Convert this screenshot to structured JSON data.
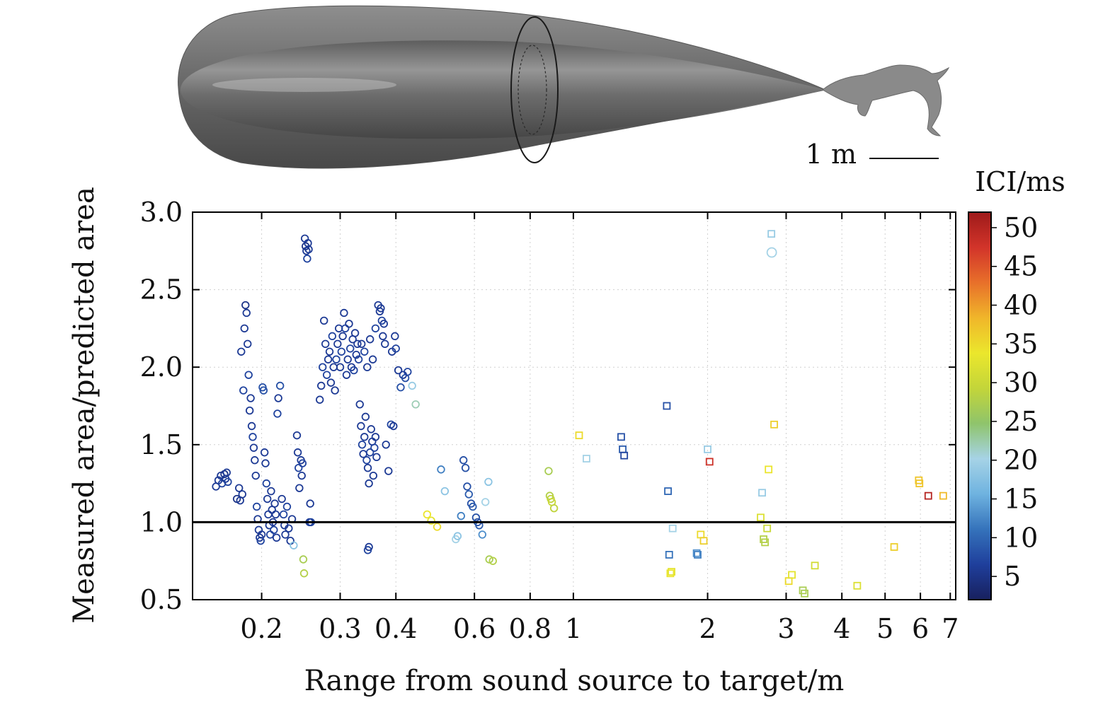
{
  "figure": {
    "scale_bar_label": "1 m",
    "colorbar_title": "ICI/ms"
  },
  "chart_data": {
    "type": "scatter",
    "title": "",
    "xlabel": "Range from sound source to target/m",
    "ylabel": "Measured area/predicted area",
    "x_scale": "log",
    "xlim": [
      0.14,
      7.2
    ],
    "ylim": [
      0.5,
      3.0
    ],
    "x_ticks": [
      0.2,
      0.3,
      0.4,
      0.6,
      0.8,
      1,
      2,
      3,
      4,
      5,
      6,
      7
    ],
    "x_tick_labels": [
      "0.2",
      "0.3",
      "0.4",
      "0.6",
      "0.8",
      "1",
      "2",
      "3",
      "4",
      "5",
      "6",
      "7"
    ],
    "y_ticks": [
      0.5,
      1.0,
      1.5,
      2.0,
      2.5,
      3.0
    ],
    "y_tick_labels": [
      "0.5",
      "1.0",
      "1.5",
      "2.0",
      "2.5",
      "3.0"
    ],
    "reference_line_y": 1.0,
    "grid": "dotted",
    "colorbar": {
      "label": "ICI/ms",
      "range": [
        2,
        52
      ],
      "ticks": [
        5,
        10,
        15,
        20,
        25,
        30,
        35,
        40,
        45,
        50
      ],
      "tick_labels": [
        "5",
        "10",
        "15",
        "20",
        "25",
        "30",
        "35",
        "40",
        "45",
        "50"
      ],
      "colormap": [
        "#18205e",
        "#1f3f9c",
        "#3573bb",
        "#6fb3e0",
        "#a6d3e6",
        "#8fc46b",
        "#c3d53a",
        "#ebe72c",
        "#f0b62a",
        "#e8702a",
        "#d2342a",
        "#9e1a1a"
      ]
    },
    "series": [
      {
        "marker": "circle",
        "points": [
          [
            0.158,
            1.23,
            6
          ],
          [
            0.16,
            1.27,
            6
          ],
          [
            0.162,
            1.3,
            6
          ],
          [
            0.163,
            1.25,
            7
          ],
          [
            0.165,
            1.31,
            5
          ],
          [
            0.166,
            1.28,
            6
          ],
          [
            0.167,
            1.32,
            6
          ],
          [
            0.168,
            1.26,
            7
          ],
          [
            0.176,
            1.15,
            5
          ],
          [
            0.178,
            1.22,
            6
          ],
          [
            0.179,
            1.14,
            6
          ],
          [
            0.18,
            2.1,
            6
          ],
          [
            0.181,
            1.18,
            6
          ],
          [
            0.182,
            1.85,
            7
          ],
          [
            0.183,
            2.25,
            6
          ],
          [
            0.184,
            2.4,
            5
          ],
          [
            0.185,
            2.35,
            6
          ],
          [
            0.186,
            2.15,
            6
          ],
          [
            0.187,
            1.95,
            7
          ],
          [
            0.188,
            1.72,
            6
          ],
          [
            0.189,
            1.8,
            6
          ],
          [
            0.19,
            1.62,
            6
          ],
          [
            0.191,
            1.55,
            7
          ],
          [
            0.192,
            1.48,
            6
          ],
          [
            0.193,
            1.4,
            6
          ],
          [
            0.194,
            1.3,
            6
          ],
          [
            0.195,
            1.1,
            7
          ],
          [
            0.196,
            1.02,
            6
          ],
          [
            0.197,
            0.95,
            6
          ],
          [
            0.198,
            0.9,
            6
          ],
          [
            0.199,
            0.88,
            7
          ],
          [
            0.2,
            0.92,
            6
          ],
          [
            0.201,
            1.87,
            8
          ],
          [
            0.202,
            1.85,
            8
          ],
          [
            0.203,
            1.45,
            6
          ],
          [
            0.204,
            1.38,
            6
          ],
          [
            0.205,
            1.25,
            7
          ],
          [
            0.206,
            1.15,
            6
          ],
          [
            0.207,
            1.05,
            6
          ],
          [
            0.208,
            0.98,
            6
          ],
          [
            0.209,
            0.92,
            7
          ],
          [
            0.21,
            1.2,
            6
          ],
          [
            0.211,
            1.08,
            6
          ],
          [
            0.212,
            1.0,
            6
          ],
          [
            0.213,
            0.95,
            7
          ],
          [
            0.214,
            1.12,
            6
          ],
          [
            0.215,
            1.05,
            6
          ],
          [
            0.216,
            0.9,
            6
          ],
          [
            0.217,
            1.7,
            7
          ],
          [
            0.218,
            1.8,
            6
          ],
          [
            0.22,
            1.88,
            8
          ],
          [
            0.222,
            1.15,
            6
          ],
          [
            0.224,
            1.05,
            7
          ],
          [
            0.225,
            0.98,
            6
          ],
          [
            0.226,
            0.92,
            6
          ],
          [
            0.228,
            1.1,
            7
          ],
          [
            0.23,
            0.96,
            6
          ],
          [
            0.232,
            0.88,
            6
          ],
          [
            0.234,
            1.02,
            6
          ],
          [
            0.236,
            0.85,
            18
          ],
          [
            0.24,
            1.56,
            6
          ],
          [
            0.241,
            1.45,
            6
          ],
          [
            0.242,
            1.35,
            7
          ],
          [
            0.243,
            1.22,
            6
          ],
          [
            0.245,
            1.4,
            6
          ],
          [
            0.246,
            1.3,
            6
          ],
          [
            0.247,
            1.38,
            7
          ],
          [
            0.248,
            0.76,
            27
          ],
          [
            0.249,
            0.67,
            28
          ],
          [
            0.25,
            2.83,
            6
          ],
          [
            0.251,
            2.78,
            5
          ],
          [
            0.252,
            2.75,
            6
          ],
          [
            0.253,
            2.7,
            7
          ],
          [
            0.254,
            2.8,
            6
          ],
          [
            0.255,
            2.76,
            6
          ],
          [
            0.256,
            1.0,
            6
          ],
          [
            0.257,
            1.12,
            6
          ],
          [
            0.258,
            1.0,
            7
          ],
          [
            0.27,
            1.79,
            6
          ],
          [
            0.272,
            1.88,
            6
          ],
          [
            0.274,
            2.0,
            7
          ],
          [
            0.276,
            2.3,
            6
          ],
          [
            0.278,
            2.15,
            6
          ],
          [
            0.28,
            1.95,
            7
          ],
          [
            0.282,
            2.05,
            6
          ],
          [
            0.284,
            2.1,
            6
          ],
          [
            0.286,
            1.9,
            6
          ],
          [
            0.288,
            2.2,
            7
          ],
          [
            0.29,
            2.0,
            6
          ],
          [
            0.292,
            1.85,
            6
          ],
          [
            0.294,
            2.05,
            7
          ],
          [
            0.296,
            2.15,
            6
          ],
          [
            0.298,
            2.25,
            6
          ],
          [
            0.3,
            2.0,
            6
          ],
          [
            0.302,
            2.1,
            7
          ],
          [
            0.304,
            2.2,
            6
          ],
          [
            0.306,
            2.35,
            6
          ],
          [
            0.308,
            2.25,
            7
          ],
          [
            0.31,
            1.95,
            6
          ],
          [
            0.312,
            2.05,
            6
          ],
          [
            0.314,
            2.28,
            6
          ],
          [
            0.316,
            2.12,
            7
          ],
          [
            0.318,
            2.0,
            6
          ],
          [
            0.32,
            2.18,
            6
          ],
          [
            0.322,
            1.98,
            7
          ],
          [
            0.324,
            2.22,
            6
          ],
          [
            0.326,
            2.08,
            6
          ],
          [
            0.328,
            2.15,
            6
          ],
          [
            0.33,
            2.05,
            7
          ],
          [
            0.332,
            1.76,
            6
          ],
          [
            0.334,
            1.62,
            6
          ],
          [
            0.336,
            1.5,
            7
          ],
          [
            0.338,
            1.44,
            6
          ],
          [
            0.34,
            1.55,
            6
          ],
          [
            0.342,
            1.68,
            6
          ],
          [
            0.344,
            1.4,
            7
          ],
          [
            0.346,
            1.35,
            6
          ],
          [
            0.348,
            1.25,
            6
          ],
          [
            0.35,
            1.45,
            7
          ],
          [
            0.352,
            1.6,
            6
          ],
          [
            0.354,
            1.52,
            6
          ],
          [
            0.356,
            1.3,
            6
          ],
          [
            0.358,
            1.48,
            7
          ],
          [
            0.36,
            1.55,
            6
          ],
          [
            0.362,
            1.42,
            6
          ],
          [
            0.335,
            2.15,
            6
          ],
          [
            0.34,
            2.1,
            7
          ],
          [
            0.345,
            2.0,
            6
          ],
          [
            0.35,
            2.18,
            6
          ],
          [
            0.355,
            2.05,
            6
          ],
          [
            0.36,
            2.25,
            7
          ],
          [
            0.365,
            2.4,
            6
          ],
          [
            0.368,
            2.36,
            6
          ],
          [
            0.37,
            2.38,
            6
          ],
          [
            0.372,
            2.3,
            7
          ],
          [
            0.374,
            2.2,
            6
          ],
          [
            0.376,
            2.28,
            6
          ],
          [
            0.378,
            2.15,
            6
          ],
          [
            0.346,
            0.82,
            7
          ],
          [
            0.348,
            0.84,
            6
          ],
          [
            0.38,
            1.5,
            6
          ],
          [
            0.385,
            1.33,
            6
          ],
          [
            0.39,
            1.63,
            7
          ],
          [
            0.395,
            1.62,
            6
          ],
          [
            0.392,
            2.1,
            6
          ],
          [
            0.398,
            2.2,
            6
          ],
          [
            0.4,
            2.12,
            7
          ],
          [
            0.405,
            1.98,
            6
          ],
          [
            0.41,
            1.87,
            8
          ],
          [
            0.415,
            1.95,
            6
          ],
          [
            0.42,
            1.93,
            8
          ],
          [
            0.425,
            1.97,
            7
          ],
          [
            0.435,
            1.88,
            19
          ],
          [
            0.443,
            1.76,
            22
          ],
          [
            0.47,
            1.05,
            34
          ],
          [
            0.48,
            1.01,
            33
          ],
          [
            0.495,
            0.97,
            35
          ],
          [
            0.505,
            1.34,
            12
          ],
          [
            0.515,
            1.2,
            18
          ],
          [
            0.545,
            0.89,
            20
          ],
          [
            0.55,
            0.91,
            18
          ],
          [
            0.56,
            1.04,
            12
          ],
          [
            0.567,
            1.4,
            8
          ],
          [
            0.573,
            1.35,
            8
          ],
          [
            0.578,
            1.23,
            8
          ],
          [
            0.583,
            1.18,
            9
          ],
          [
            0.59,
            1.12,
            8
          ],
          [
            0.595,
            1.1,
            9
          ],
          [
            0.605,
            1.03,
            8
          ],
          [
            0.61,
            1.0,
            8
          ],
          [
            0.615,
            0.98,
            9
          ],
          [
            0.625,
            0.92,
            13
          ],
          [
            0.635,
            1.13,
            20
          ],
          [
            0.645,
            1.26,
            18
          ],
          [
            0.648,
            0.76,
            27
          ],
          [
            0.66,
            0.75,
            28
          ],
          [
            0.88,
            1.33,
            27
          ],
          [
            0.885,
            1.17,
            28
          ],
          [
            0.89,
            1.15,
            29
          ],
          [
            0.895,
            1.13,
            30
          ],
          [
            0.905,
            1.09,
            29
          ],
          [
            2.785,
            2.74,
            20
          ]
        ]
      },
      {
        "marker": "square",
        "points": [
          [
            1.03,
            1.56,
            35
          ],
          [
            1.07,
            1.41,
            20
          ],
          [
            1.28,
            1.55,
            8
          ],
          [
            1.29,
            1.47,
            9
          ],
          [
            1.3,
            1.43,
            7
          ],
          [
            1.62,
            1.75,
            8
          ],
          [
            1.63,
            1.2,
            10
          ],
          [
            1.64,
            0.79,
            11
          ],
          [
            1.65,
            0.67,
            34
          ],
          [
            1.66,
            0.68,
            33
          ],
          [
            1.67,
            0.96,
            20
          ],
          [
            1.89,
            0.8,
            13
          ],
          [
            1.9,
            0.79,
            12
          ],
          [
            1.93,
            0.92,
            35
          ],
          [
            1.96,
            0.88,
            36
          ],
          [
            2.0,
            1.47,
            19
          ],
          [
            2.02,
            1.39,
            48
          ],
          [
            2.63,
            1.03,
            32
          ],
          [
            2.65,
            1.19,
            19
          ],
          [
            2.67,
            0.89,
            28
          ],
          [
            2.69,
            0.87,
            28
          ],
          [
            2.72,
            0.96,
            30
          ],
          [
            2.74,
            1.34,
            34
          ],
          [
            2.78,
            2.86,
            19
          ],
          [
            2.82,
            1.63,
            36
          ],
          [
            3.04,
            0.62,
            35
          ],
          [
            3.09,
            0.66,
            33
          ],
          [
            3.27,
            0.56,
            27
          ],
          [
            3.3,
            0.54,
            27
          ],
          [
            3.48,
            0.72,
            31
          ],
          [
            4.33,
            0.59,
            32
          ],
          [
            5.24,
            0.84,
            36
          ],
          [
            5.95,
            1.27,
            37
          ],
          [
            5.97,
            1.25,
            37
          ],
          [
            6.25,
            1.17,
            50
          ],
          [
            6.75,
            1.17,
            38
          ]
        ]
      }
    ]
  }
}
